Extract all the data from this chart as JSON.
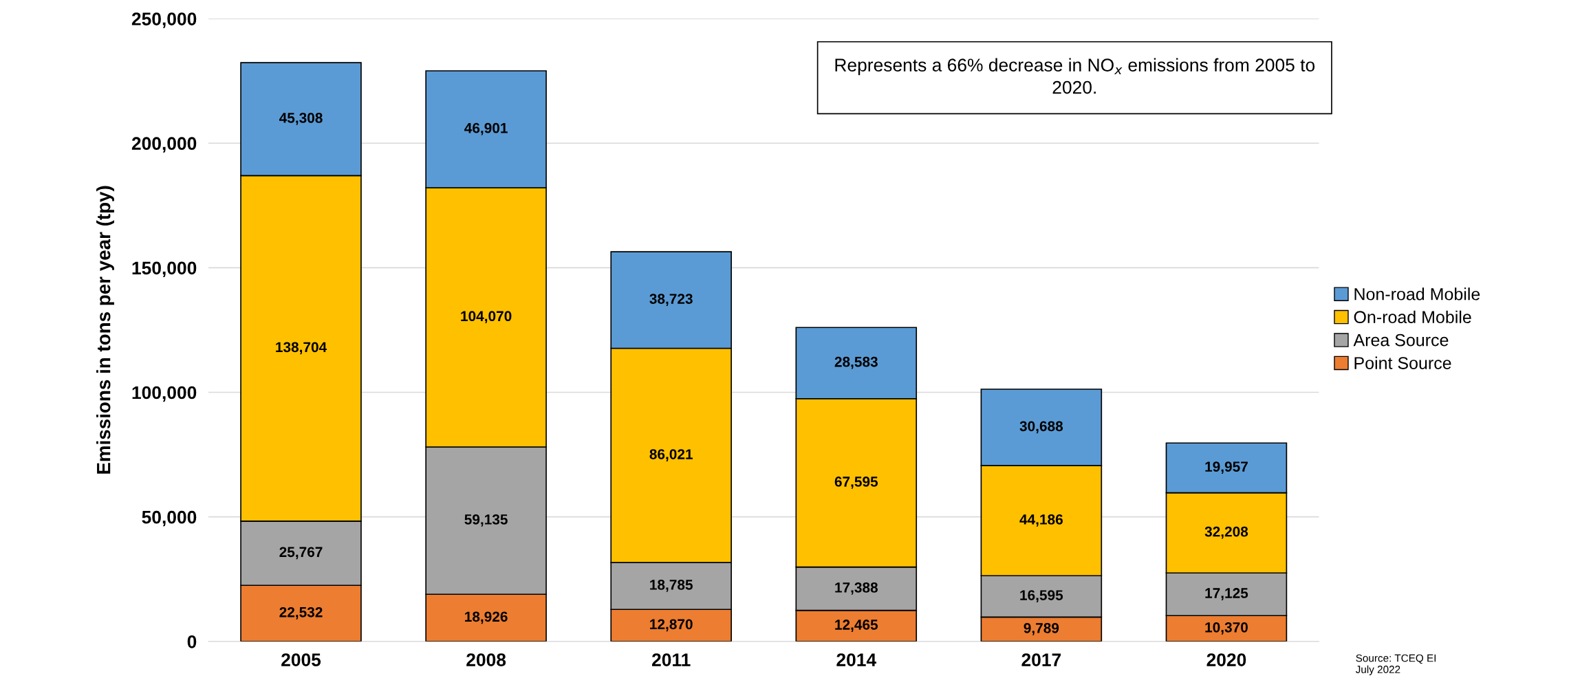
{
  "chart_data": {
    "type": "bar",
    "stacked": true,
    "ylabel": "Emissions in tons per year (tpy)",
    "categories": [
      "2005",
      "2008",
      "2011",
      "2014",
      "2017",
      "2020"
    ],
    "series": [
      {
        "name": "Point Source",
        "color": "#ed7d31",
        "values": [
          22532,
          18926,
          12870,
          12465,
          9789,
          10370
        ],
        "value_labels": [
          "22,532",
          "18,926",
          "12,870",
          "12,465",
          "9,789",
          "10,370"
        ]
      },
      {
        "name": "Area Source",
        "color": "#a5a5a5",
        "values": [
          25767,
          59135,
          18785,
          17388,
          16595,
          17125
        ],
        "value_labels": [
          "25,767",
          "59,135",
          "18,785",
          "17,388",
          "16,595",
          "17,125"
        ]
      },
      {
        "name": "On-road Mobile",
        "color": "#ffc000",
        "values": [
          138704,
          104070,
          86021,
          67595,
          44186,
          32208
        ],
        "value_labels": [
          "138,704",
          "104,070",
          "86,021",
          "67,595",
          "44,186",
          "32,208"
        ]
      },
      {
        "name": "Non-road Mobile",
        "color": "#5b9bd5",
        "values": [
          45308,
          46901,
          38723,
          28583,
          30688,
          19957
        ],
        "value_labels": [
          "45,308",
          "46,901",
          "38,723",
          "28,583",
          "30,688",
          "19,957"
        ]
      }
    ],
    "ylim": [
      0,
      250000
    ],
    "yticks": [
      {
        "value": 0,
        "label": "0"
      },
      {
        "value": 50000,
        "label": "50,000"
      },
      {
        "value": 100000,
        "label": "100,000"
      },
      {
        "value": 150000,
        "label": "150,000"
      },
      {
        "value": 200000,
        "label": "200,000"
      },
      {
        "value": 250000,
        "label": "250,000"
      }
    ],
    "grid": "y",
    "legend": "right",
    "annotations": [
      "Represents a 66% decrease in NO$_{x}$ emissions from 2005 to 2020.",
      "Source: TCEQ EI\nJuly 2022"
    ]
  }
}
